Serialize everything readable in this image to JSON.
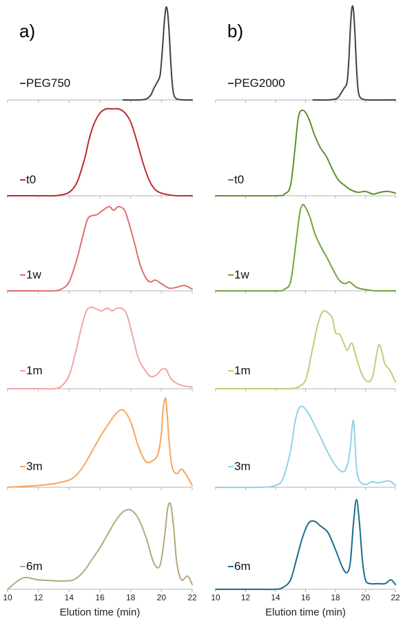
{
  "chart_data": [
    {
      "type": "line",
      "panel_label": "a)",
      "xlabel": "Elution time (min)",
      "ylabel": "",
      "xlim": [
        10,
        22
      ],
      "xticks": [
        "10",
        "12",
        "14",
        "16",
        "18",
        "20",
        "22"
      ],
      "ylim": [
        0,
        1
      ],
      "grid": false,
      "series": [
        {
          "name": "PEG750",
          "color": "#404040",
          "x": [
            17.5,
            18.5,
            19.0,
            19.3,
            19.5,
            19.7,
            19.9,
            20.0,
            20.1,
            20.2,
            20.3,
            20.4,
            20.5,
            20.6,
            20.7,
            20.8,
            21.0,
            21.5,
            22.0
          ],
          "y": [
            0.0,
            0.0,
            0.01,
            0.05,
            0.12,
            0.18,
            0.25,
            0.4,
            0.62,
            0.85,
            0.98,
            0.93,
            0.72,
            0.42,
            0.18,
            0.06,
            0.01,
            0.0,
            0.0
          ]
        },
        {
          "name": "t0",
          "color": "#c0282d",
          "x": [
            10,
            12,
            13.0,
            13.5,
            14.0,
            14.5,
            15.0,
            15.3,
            15.6,
            16.0,
            16.4,
            16.8,
            17.2,
            17.6,
            18.0,
            18.4,
            18.8,
            19.2,
            19.6,
            20.0,
            20.5,
            21.0,
            22.0
          ],
          "y": [
            0,
            0,
            0.0,
            0.01,
            0.04,
            0.15,
            0.42,
            0.65,
            0.82,
            0.95,
            1.0,
            1.0,
            1.0,
            0.96,
            0.85,
            0.63,
            0.38,
            0.18,
            0.07,
            0.03,
            0.01,
            0.0,
            0.0
          ]
        },
        {
          "name": "1w",
          "color": "#e06d6d",
          "x": [
            10,
            12,
            13.0,
            13.5,
            14.0,
            14.5,
            14.9,
            15.2,
            15.5,
            15.8,
            16.2,
            16.6,
            16.9,
            17.2,
            17.6,
            17.9,
            18.3,
            18.6,
            19.0,
            19.3,
            19.6,
            20.0,
            20.5,
            21.0,
            21.5,
            22.0
          ],
          "y": [
            0,
            0,
            0.0,
            0.02,
            0.1,
            0.35,
            0.62,
            0.8,
            0.84,
            0.85,
            0.9,
            0.94,
            0.9,
            0.94,
            0.9,
            0.75,
            0.5,
            0.3,
            0.14,
            0.1,
            0.12,
            0.08,
            0.03,
            0.04,
            0.06,
            0.02
          ]
        },
        {
          "name": "1m",
          "color": "#f0a5a5",
          "x": [
            10,
            12,
            13.0,
            13.5,
            14.0,
            14.4,
            14.8,
            15.1,
            15.4,
            15.8,
            16.1,
            16.5,
            16.8,
            17.1,
            17.5,
            17.8,
            18.2,
            18.5,
            18.9,
            19.3,
            19.7,
            20.0,
            20.3,
            20.6,
            21.0,
            21.5,
            22.0
          ],
          "y": [
            0,
            0,
            0.0,
            0.03,
            0.15,
            0.4,
            0.7,
            0.88,
            0.93,
            0.91,
            0.89,
            0.92,
            0.89,
            0.92,
            0.91,
            0.82,
            0.55,
            0.35,
            0.22,
            0.14,
            0.16,
            0.22,
            0.22,
            0.12,
            0.06,
            0.03,
            0.02
          ]
        },
        {
          "name": "3m",
          "color": "#f7a55a",
          "x": [
            10,
            11,
            12,
            13,
            14.0,
            14.5,
            15.0,
            15.5,
            16.0,
            16.5,
            17.0,
            17.5,
            18.0,
            18.5,
            19.0,
            19.5,
            19.8,
            20.0,
            20.1,
            20.25,
            20.35,
            20.5,
            20.7,
            21.0,
            21.3,
            21.6,
            22.0
          ],
          "y": [
            0.0,
            0.01,
            0.02,
            0.04,
            0.08,
            0.14,
            0.25,
            0.4,
            0.55,
            0.68,
            0.8,
            0.85,
            0.72,
            0.45,
            0.28,
            0.3,
            0.38,
            0.6,
            0.85,
            0.98,
            0.86,
            0.5,
            0.22,
            0.15,
            0.2,
            0.14,
            0.02
          ]
        },
        {
          "name": "6m",
          "color": "#b5a77c",
          "x": [
            10,
            11,
            12,
            13,
            14.0,
            14.5,
            15.0,
            15.5,
            16.0,
            16.5,
            17.0,
            17.5,
            18.0,
            18.5,
            19.0,
            19.5,
            19.9,
            20.2,
            20.4,
            20.6,
            20.8,
            21.0,
            21.3,
            21.7,
            22.0
          ],
          "y": [
            0.0,
            0.12,
            0.1,
            0.09,
            0.09,
            0.12,
            0.2,
            0.32,
            0.44,
            0.58,
            0.72,
            0.82,
            0.84,
            0.75,
            0.55,
            0.28,
            0.25,
            0.55,
            0.85,
            0.9,
            0.65,
            0.28,
            0.1,
            0.14,
            0.05
          ]
        }
      ]
    },
    {
      "type": "line",
      "panel_label": "b)",
      "xlabel": "Elution time (min)",
      "ylabel": "",
      "xlim": [
        10,
        22
      ],
      "xticks": [
        "10",
        "12",
        "14",
        "16",
        "18",
        "20",
        "22"
      ],
      "ylim": [
        0,
        1
      ],
      "grid": false,
      "series": [
        {
          "name": "PEG2000",
          "color": "#404040",
          "x": [
            16.5,
            17.5,
            18.0,
            18.2,
            18.4,
            18.6,
            18.7,
            18.8,
            18.9,
            19.0,
            19.1,
            19.2,
            19.3,
            19.4,
            19.5,
            19.6,
            19.8,
            20.2,
            22.0
          ],
          "y": [
            0.0,
            0.0,
            0.01,
            0.03,
            0.08,
            0.13,
            0.15,
            0.22,
            0.45,
            0.78,
            0.98,
            0.95,
            0.7,
            0.35,
            0.12,
            0.04,
            0.01,
            0.0,
            0.0
          ]
        },
        {
          "name": "t0",
          "color": "#5e8e2d",
          "x": [
            10,
            14.0,
            14.6,
            15.0,
            15.3,
            15.5,
            15.7,
            16.0,
            16.3,
            16.6,
            17.0,
            17.4,
            17.8,
            18.2,
            18.6,
            19.0,
            19.5,
            20.0,
            20.5,
            21.0,
            21.5,
            22.0
          ],
          "y": [
            0,
            0,
            0.02,
            0.12,
            0.55,
            0.88,
            0.98,
            0.96,
            0.85,
            0.7,
            0.55,
            0.45,
            0.3,
            0.18,
            0.12,
            0.07,
            0.04,
            0.05,
            0.02,
            0.04,
            0.05,
            0.03
          ]
        },
        {
          "name": "1w",
          "color": "#6fa43a",
          "x": [
            10,
            14.0,
            14.6,
            15.0,
            15.3,
            15.6,
            15.8,
            16.0,
            16.3,
            16.6,
            17.0,
            17.4,
            17.8,
            18.2,
            18.6,
            18.9,
            19.1,
            19.4,
            19.8,
            20.2,
            20.6,
            21.0,
            21.5,
            22.0
          ],
          "y": [
            0,
            0,
            0.02,
            0.1,
            0.45,
            0.85,
            0.96,
            0.93,
            0.82,
            0.65,
            0.5,
            0.38,
            0.25,
            0.13,
            0.08,
            0.1,
            0.08,
            0.04,
            0.02,
            0.01,
            0.0,
            0.0,
            0.0,
            0.0
          ]
        },
        {
          "name": "1m",
          "color": "#b4d37a",
          "x": [
            10,
            14.0,
            15.0,
            15.5,
            16.0,
            16.4,
            16.8,
            17.1,
            17.4,
            17.8,
            18.0,
            18.3,
            18.6,
            18.8,
            19.1,
            19.4,
            19.8,
            20.2,
            20.5,
            20.7,
            20.9,
            21.1,
            21.3,
            21.6,
            22.0
          ],
          "y": [
            0,
            0,
            0.0,
            0.02,
            0.1,
            0.4,
            0.72,
            0.87,
            0.88,
            0.8,
            0.64,
            0.62,
            0.5,
            0.44,
            0.52,
            0.35,
            0.15,
            0.08,
            0.15,
            0.35,
            0.5,
            0.42,
            0.28,
            0.22,
            0.08
          ]
        },
        {
          "name": "3m",
          "color": "#8fd1ea",
          "x": [
            10,
            13.0,
            14.0,
            14.5,
            15.0,
            15.3,
            15.6,
            16.0,
            16.5,
            17.0,
            17.5,
            18.0,
            18.5,
            18.8,
            19.0,
            19.1,
            19.2,
            19.3,
            19.4,
            19.6,
            20.0,
            20.4,
            20.8,
            21.2,
            21.6,
            22.0
          ],
          "y": [
            0,
            0.0,
            0.02,
            0.1,
            0.4,
            0.72,
            0.88,
            0.86,
            0.72,
            0.55,
            0.38,
            0.24,
            0.17,
            0.25,
            0.45,
            0.65,
            0.73,
            0.5,
            0.22,
            0.07,
            0.03,
            0.06,
            0.05,
            0.06,
            0.07,
            0.02
          ]
        },
        {
          "name": "6m",
          "color": "#1a6a8e",
          "x": [
            10,
            13.0,
            14.0,
            14.5,
            15.0,
            15.4,
            15.8,
            16.2,
            16.6,
            17.0,
            17.5,
            18.0,
            18.5,
            18.8,
            19.0,
            19.2,
            19.4,
            19.6,
            19.8,
            20.0,
            20.3,
            20.8,
            21.3,
            21.7,
            22.0
          ],
          "y": [
            0,
            0.0,
            0.0,
            0.02,
            0.1,
            0.32,
            0.55,
            0.7,
            0.72,
            0.67,
            0.6,
            0.42,
            0.22,
            0.18,
            0.3,
            0.7,
            0.95,
            0.7,
            0.3,
            0.1,
            0.06,
            0.06,
            0.06,
            0.1,
            0.05
          ]
        }
      ]
    }
  ]
}
